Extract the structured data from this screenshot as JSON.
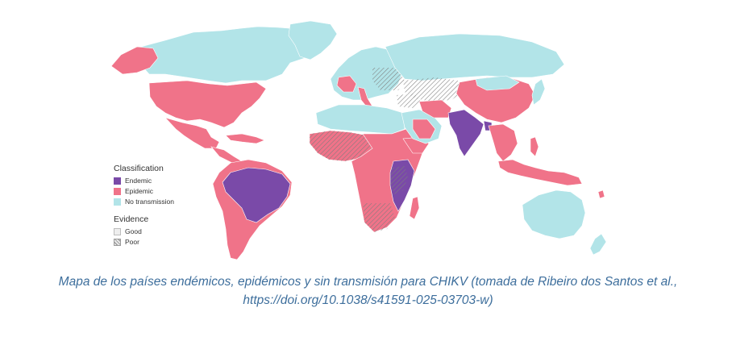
{
  "colors": {
    "endemic": "#7a4aa8",
    "epidemic": "#f07389",
    "no_transmission": "#b2e4e8",
    "caption": "#3d6e9c"
  },
  "legend": {
    "classification_title": "Classification",
    "classes": [
      {
        "label": "Endemic",
        "color": "#7a4aa8"
      },
      {
        "label": "Epidemic",
        "color": "#f07389"
      },
      {
        "label": "No transmission",
        "color": "#b2e4e8"
      }
    ],
    "evidence_title": "Evidence",
    "evidence": [
      {
        "label": "Good",
        "pattern": "solid"
      },
      {
        "label": "Poor",
        "pattern": "hatched"
      }
    ]
  },
  "caption": {
    "line1": "Mapa de los países endémicos, epidémicos y sin transmisión para CHIKV (tomada de Ribeiro dos Santos et al.,",
    "line2": "https://doi.org/10.1038/s41591-025-03703-w)"
  }
}
